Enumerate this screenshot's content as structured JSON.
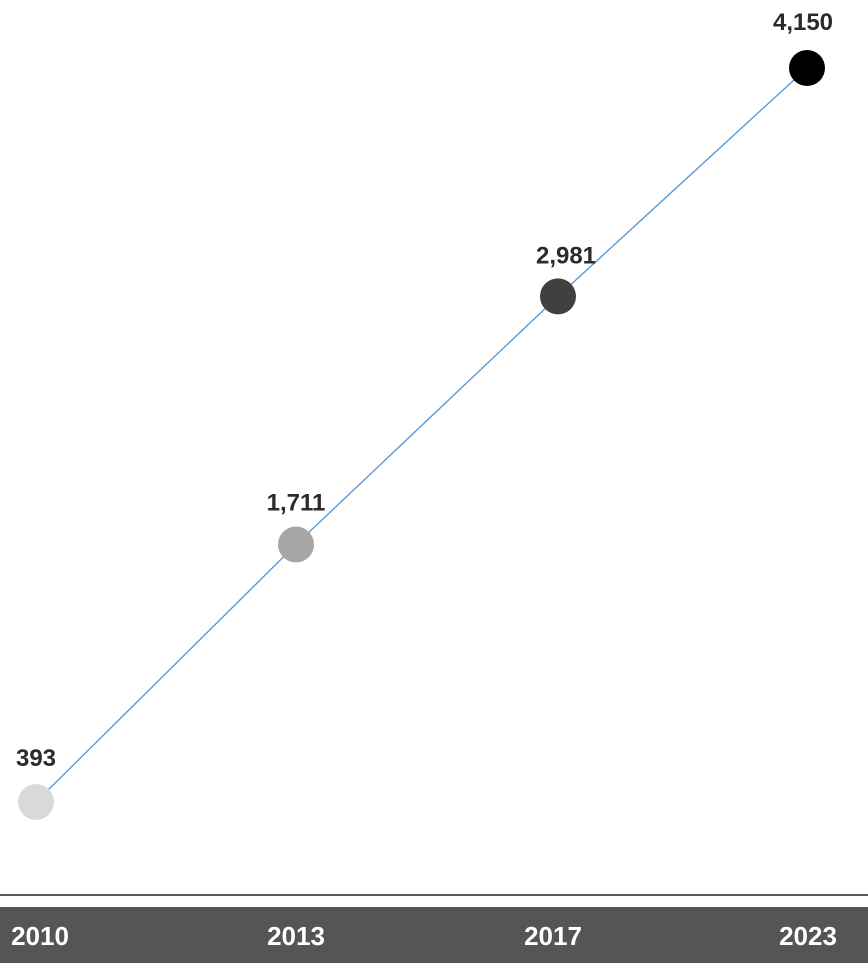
{
  "chart_data": {
    "type": "line",
    "categories": [
      "2010",
      "2013",
      "2017",
      "2023"
    ],
    "values": [
      393,
      1711,
      2981,
      4150
    ],
    "data_labels": [
      "393",
      "1,711",
      "2,981",
      "4,150"
    ],
    "xlabel": "",
    "ylabel": "",
    "grid": false,
    "legend": "none",
    "colors": {
      "line": "#5b9bd5",
      "points": [
        "#d9d9d9",
        "#a6a6a6",
        "#404040",
        "#000000"
      ],
      "axis_band": "#555555",
      "axis_line": "#595959",
      "label_text": "#2b2b2b",
      "year_text": "#ffffff"
    }
  }
}
